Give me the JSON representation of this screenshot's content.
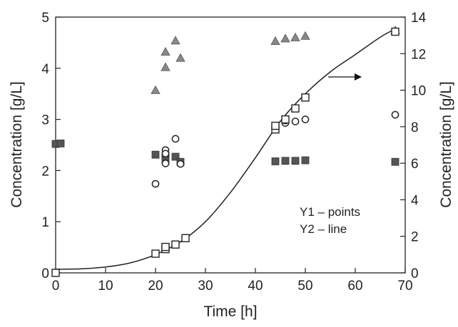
{
  "chart_data": {
    "type": "scatter",
    "xlabel": "Time [h]",
    "ylabel": "Concentration [g/L]",
    "y2label": "Concentration [g/L]",
    "xlim": [
      0,
      70
    ],
    "ylim": [
      0,
      5
    ],
    "y2lim": [
      0,
      14
    ],
    "xticks": [
      0,
      10,
      20,
      30,
      40,
      50,
      60,
      70
    ],
    "yticks": [
      0,
      1,
      2,
      3,
      4,
      5
    ],
    "y2ticks": [
      0,
      2,
      4,
      6,
      8,
      10,
      12,
      14
    ],
    "grid": false,
    "annotation": [
      "Y1 – points",
      "Y2 – line"
    ],
    "series": [
      {
        "axis": "y1",
        "marker": "triangle-filled",
        "color": "#888888",
        "points": [
          [
            20,
            3.57
          ],
          [
            22,
            4.02
          ],
          [
            22,
            4.32
          ],
          [
            24,
            4.54
          ],
          [
            25,
            4.2
          ],
          [
            44,
            4.53
          ],
          [
            46,
            4.58
          ],
          [
            48,
            4.6
          ],
          [
            50,
            4.63
          ],
          [
            68,
            4.74
          ]
        ]
      },
      {
        "axis": "y1",
        "marker": "square-filled",
        "color": "#555555",
        "points": [
          [
            0,
            2.52
          ],
          [
            1,
            2.53
          ],
          [
            20,
            2.31
          ],
          [
            22,
            2.28
          ],
          [
            22,
            2.2
          ],
          [
            24,
            2.27
          ],
          [
            25,
            2.17
          ],
          [
            44,
            2.18
          ],
          [
            46,
            2.19
          ],
          [
            48,
            2.19
          ],
          [
            50,
            2.2
          ],
          [
            68,
            2.17
          ]
        ]
      },
      {
        "axis": "y1",
        "marker": "circle-open",
        "color": "#222222",
        "points": [
          [
            20,
            1.74
          ],
          [
            22,
            2.14
          ],
          [
            22,
            2.4
          ],
          [
            22,
            2.33
          ],
          [
            24,
            2.62
          ],
          [
            25,
            2.13
          ],
          [
            44,
            2.88
          ],
          [
            46,
            2.93
          ],
          [
            46,
            2.98
          ],
          [
            48,
            2.96
          ],
          [
            50,
            3.0
          ],
          [
            68,
            3.09
          ]
        ]
      },
      {
        "axis": "y2",
        "marker": "square-open",
        "color": "#222222",
        "points": [
          [
            0,
            0.0
          ],
          [
            20,
            1.05
          ],
          [
            22,
            1.3
          ],
          [
            22,
            1.42
          ],
          [
            24,
            1.55
          ],
          [
            26,
            1.9
          ],
          [
            44,
            7.85
          ],
          [
            44,
            8.05
          ],
          [
            46,
            8.4
          ],
          [
            48,
            9.0
          ],
          [
            50,
            9.6
          ],
          [
            68,
            13.2
          ]
        ]
      },
      {
        "axis": "y2",
        "type": "line",
        "color": "#222222",
        "points": [
          [
            0,
            0.2
          ],
          [
            5,
            0.22
          ],
          [
            10,
            0.32
          ],
          [
            15,
            0.55
          ],
          [
            20,
            1.0
          ],
          [
            25,
            1.7
          ],
          [
            30,
            2.8
          ],
          [
            35,
            4.4
          ],
          [
            40,
            6.3
          ],
          [
            45,
            8.3
          ],
          [
            50,
            9.8
          ],
          [
            55,
            11.0
          ],
          [
            60,
            11.95
          ],
          [
            65,
            12.9
          ],
          [
            68,
            13.35
          ]
        ]
      }
    ]
  }
}
